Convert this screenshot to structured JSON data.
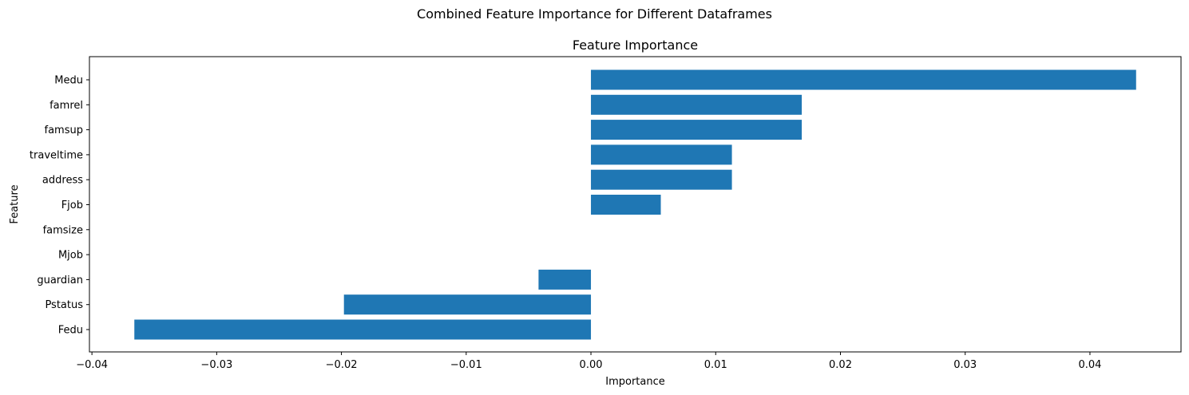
{
  "figure": {
    "suptitle": "Combined Feature Importance for Different Dataframes"
  },
  "chart_data": {
    "type": "bar",
    "orientation": "horizontal",
    "title": "Feature Importance",
    "xlabel": "Importance",
    "ylabel": "Feature",
    "categories": [
      "Medu",
      "famrel",
      "famsup",
      "traveltime",
      "address",
      "Fjob",
      "famsize",
      "Mjob",
      "guardian",
      "Pstatus",
      "Fedu"
    ],
    "values": [
      0.0437,
      0.0169,
      0.0169,
      0.0113,
      0.0113,
      0.0056,
      0.0,
      0.0,
      -0.0042,
      -0.0198,
      -0.0366
    ],
    "xlim": [
      -0.0402,
      0.0473
    ],
    "xticks": [
      -0.04,
      -0.03,
      -0.02,
      -0.01,
      0.0,
      0.01,
      0.02,
      0.03,
      0.04
    ],
    "xtick_labels": [
      "−0.04",
      "−0.03",
      "−0.02",
      "−0.01",
      "0.00",
      "0.01",
      "0.02",
      "0.03",
      "0.04"
    ],
    "bar_color": "#1f77b4",
    "grid": false,
    "legend": "none"
  }
}
